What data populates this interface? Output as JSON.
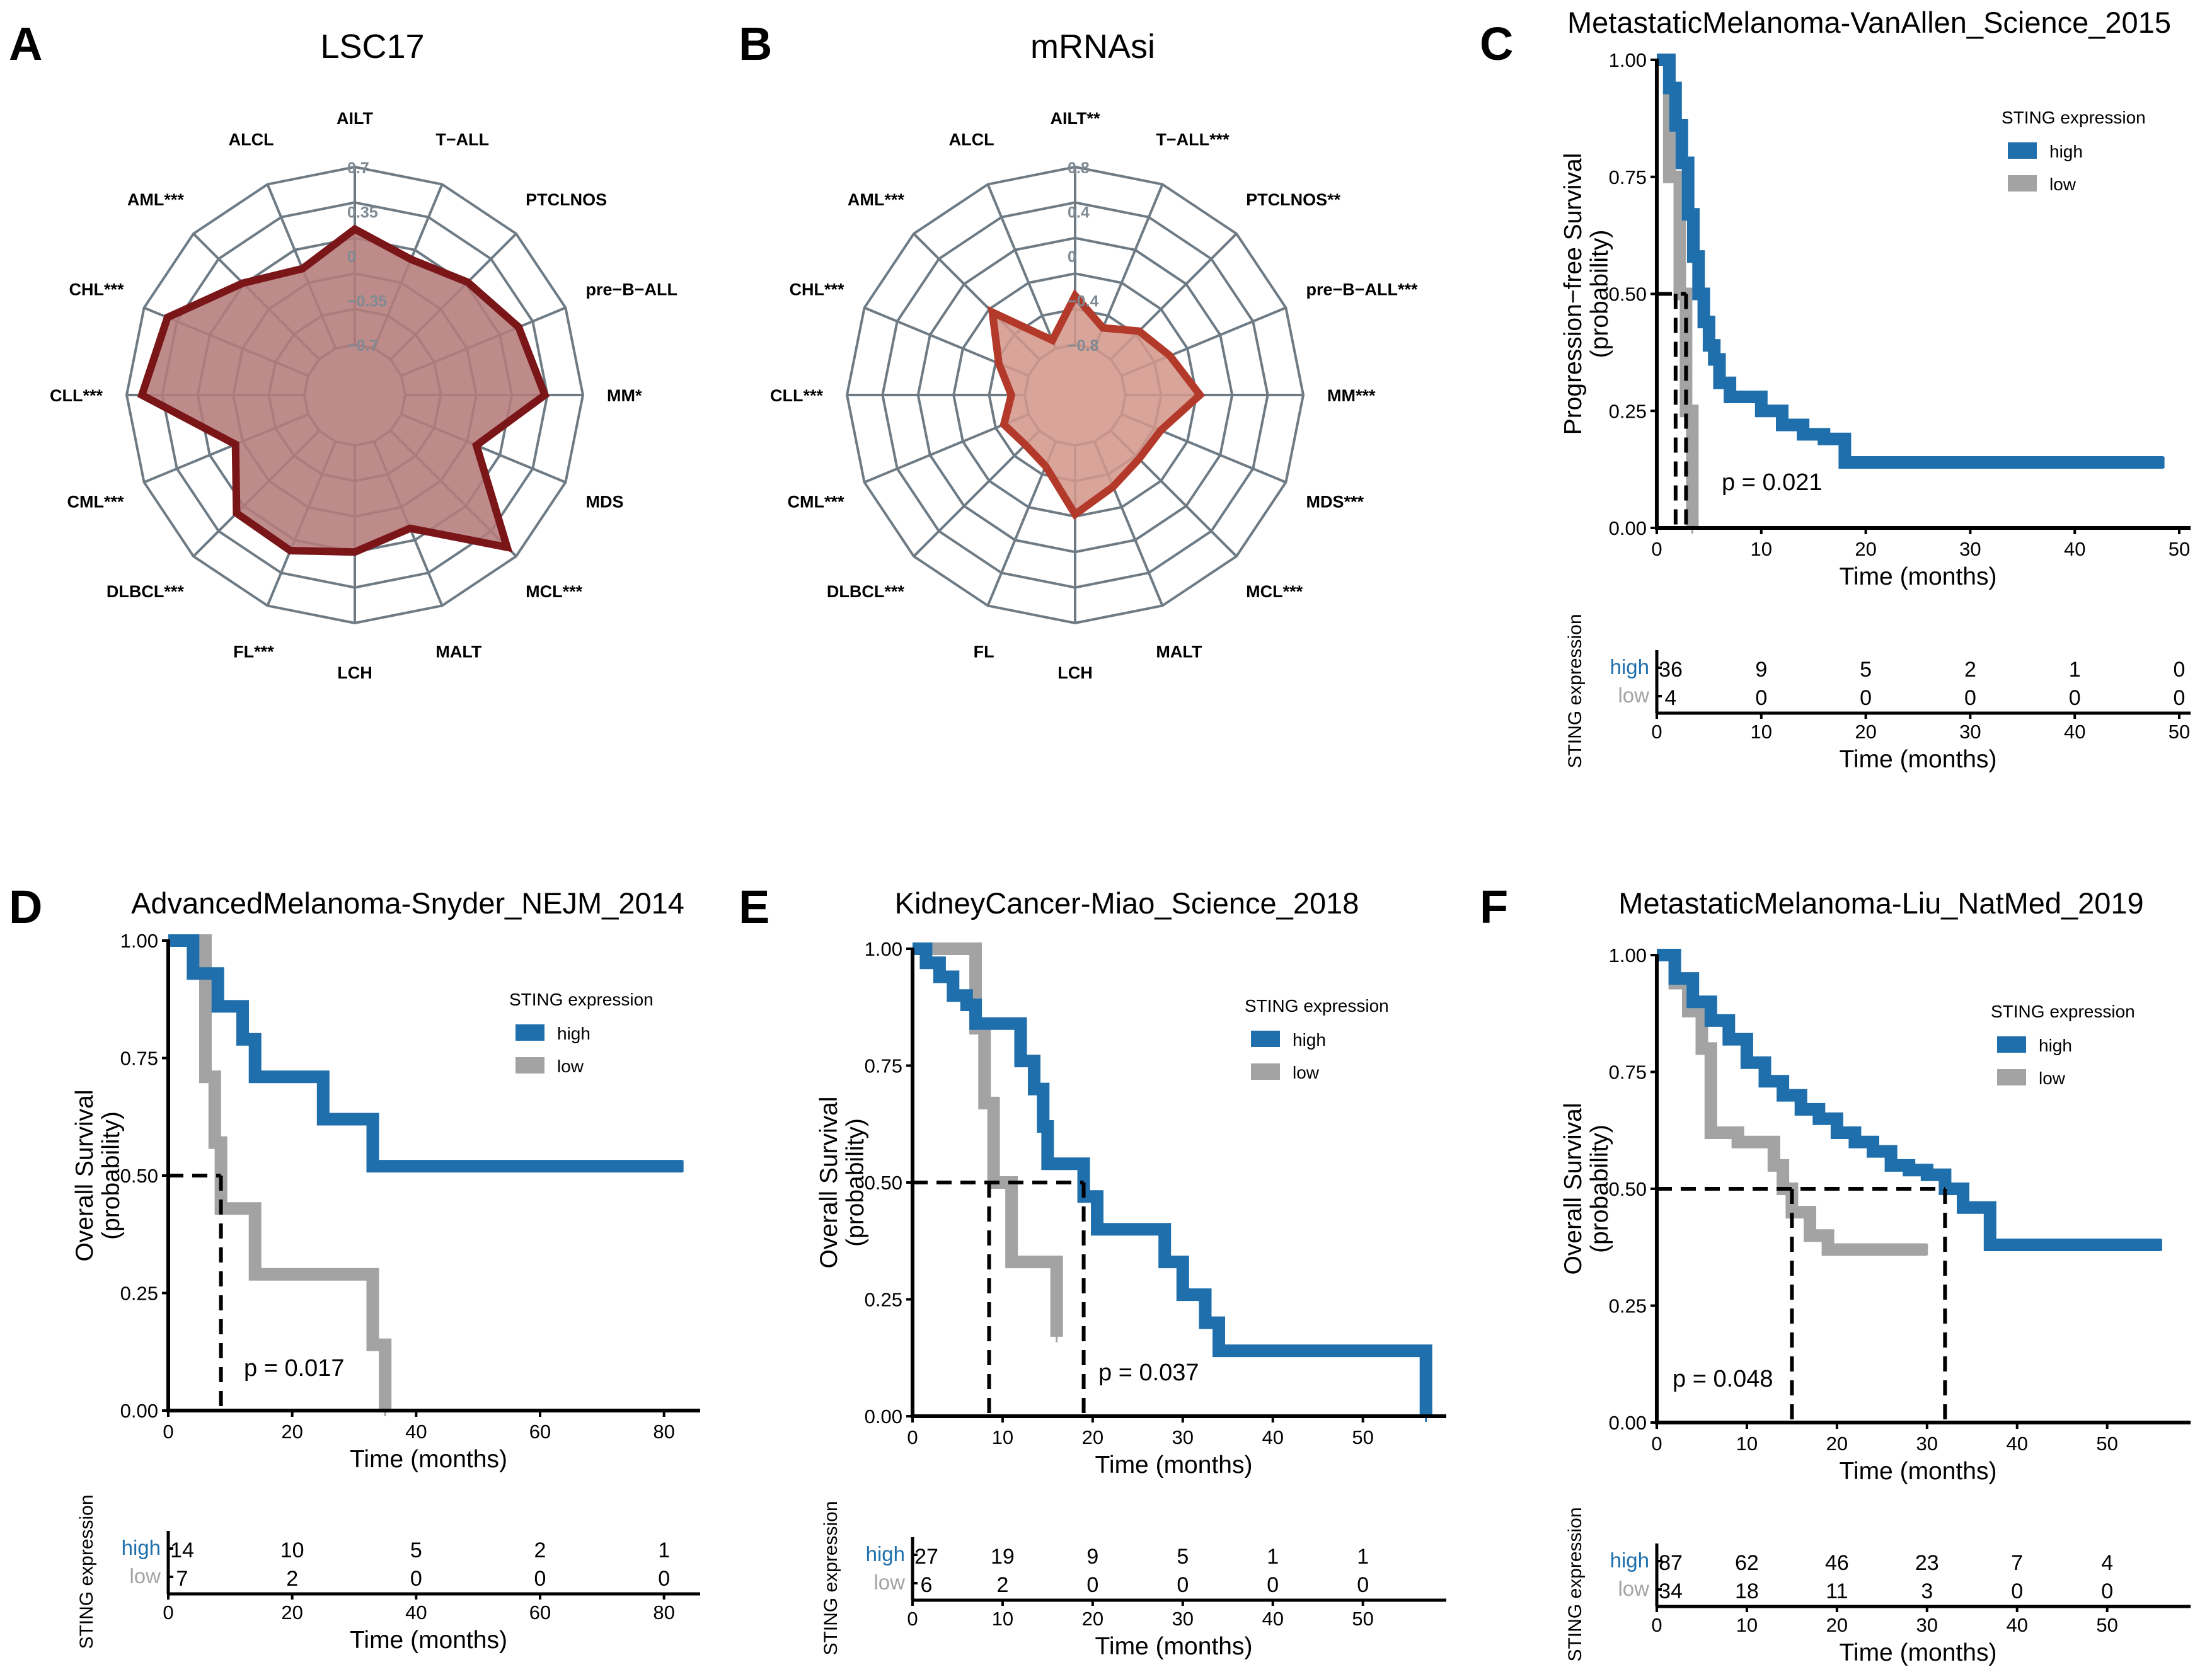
{
  "colors": {
    "high": "#1f6fac",
    "low": "#a3a3a3",
    "radar_grid": "#6e7b85",
    "lsc17_stroke": "#7a1518",
    "lsc17_fill": "#b57b7b",
    "mrnasi_stroke": "#b33a2a",
    "mrnasi_fill": "#d4978c",
    "axis": "#000000"
  },
  "chart_data": [
    {
      "panel": "A",
      "type": "radar",
      "title": "LSC17",
      "axes": [
        "AILT",
        "T−ALL",
        "PTCLNOS",
        "pre−B−ALL",
        "MM*",
        "MDS",
        "MCL***",
        "MALT",
        "LCH",
        "FL***",
        "DLBCL***",
        "CML***",
        "CLL***",
        "CHL***",
        "AML***",
        "ALCL"
      ],
      "tick_labels": [
        "0.7",
        "0.35",
        "0",
        "−0.35",
        "−0.7"
      ],
      "scale": [
        -0.7,
        0.7
      ],
      "values": [
        0.21,
        0.06,
        0.16,
        0.3,
        0.4,
        -0.06,
        0.6,
        0.04,
        0.14,
        0.23,
        0.22,
        -0.08,
        0.58,
        0.5,
        0.15,
        -0.02
      ]
    },
    {
      "panel": "B",
      "type": "radar",
      "title": "mRNAsi",
      "axes": [
        "AILT**",
        "T−ALL***",
        "PTCLNOS**",
        "pre−B−ALL***",
        "MM***",
        "MDS***",
        "MCL***",
        "MALT",
        "LCH",
        "FL",
        "DLBCL***",
        "CML***",
        "CLL***",
        "CHL***",
        "AML***",
        "ALCL"
      ],
      "tick_labels": [
        "0.8",
        "0.4",
        "0",
        "−0.4",
        "−0.8"
      ],
      "scale": [
        -0.8,
        0.8
      ],
      "values": [
        -0.36,
        -0.6,
        -0.44,
        -0.33,
        -0.13,
        -0.42,
        -0.44,
        -0.36,
        -0.18,
        -0.56,
        -0.62,
        -0.56,
        -0.68,
        -0.51,
        -0.2,
        -0.72
      ]
    },
    {
      "panel": "C",
      "type": "line",
      "title": "MetastaticMelanoma-VanAllen_Science_2015",
      "ylabel_line1": "Progression−free Survival",
      "ylabel_line2": "(probability)",
      "xlabel": "Time (months)",
      "xlim": [
        0,
        50
      ],
      "ylim": [
        0,
        1
      ],
      "xticks": [
        "0",
        "10",
        "20",
        "30",
        "40",
        "50"
      ],
      "yticks": [
        "0.00",
        "0.25",
        "0.50",
        "0.75",
        "1.00"
      ],
      "legend_title": "STING  expression",
      "legend_items": [
        "high",
        "low"
      ],
      "pvalue": "p = 0.021",
      "series": [
        {
          "name": "high",
          "x": [
            0,
            1.2,
            1.8,
            2.4,
            3,
            3.5,
            4,
            4.5,
            5,
            5.5,
            6,
            7,
            10,
            12,
            14,
            16,
            18,
            48.5
          ],
          "y": [
            1,
            0.94,
            0.86,
            0.78,
            0.67,
            0.58,
            0.5,
            0.44,
            0.39,
            0.36,
            0.31,
            0.28,
            0.25,
            0.22,
            0.2,
            0.19,
            0.14,
            0.14
          ]
        },
        {
          "name": "low",
          "x": [
            0,
            1.2,
            2.2,
            2.8,
            3.4
          ],
          "y": [
            1,
            0.75,
            0.5,
            0.25,
            0
          ]
        }
      ],
      "median_lines": [
        [
          1.8,
          0.5
        ],
        [
          2.8,
          0.5
        ]
      ],
      "risk_table": {
        "title": "STING  expression",
        "xlabel": "Time (months)",
        "ticks": [
          "0",
          "10",
          "20",
          "30",
          "40",
          "50"
        ],
        "rows": [
          {
            "label": "high",
            "counts": [
              "36",
              "9",
              "5",
              "2",
              "1",
              "0"
            ]
          },
          {
            "label": "low",
            "counts": [
              "4",
              "0",
              "0",
              "0",
              "0",
              "0"
            ]
          }
        ]
      }
    },
    {
      "panel": "D",
      "type": "line",
      "title": "AdvancedMelanoma-Snyder_NEJM_2014",
      "ylabel_line1": "Overall Survival",
      "ylabel_line2": "(probability)",
      "xlabel": "Time (months)",
      "xlim": [
        0,
        84
      ],
      "ylim": [
        0,
        1
      ],
      "xticks": [
        "0",
        "20",
        "40",
        "60",
        "80"
      ],
      "yticks": [
        "0.00",
        "0.25",
        "0.50",
        "0.75",
        "1.00"
      ],
      "legend_title": "STING  expression",
      "legend_items": [
        "high",
        "low"
      ],
      "pvalue": "p = 0.017",
      "series": [
        {
          "name": "high",
          "x": [
            0,
            4,
            8,
            12,
            14,
            25,
            33,
            83
          ],
          "y": [
            1,
            0.93,
            0.86,
            0.79,
            0.71,
            0.62,
            0.52,
            0.52
          ]
        },
        {
          "name": "low",
          "x": [
            0,
            6,
            7.5,
            8.5,
            14,
            33,
            35
          ],
          "y": [
            1,
            0.71,
            0.57,
            0.43,
            0.29,
            0.14,
            0
          ]
        }
      ],
      "median_lines": [
        [
          8.5,
          0.5
        ]
      ],
      "risk_table": {
        "title": "STING  expression",
        "xlabel": "Time (months)",
        "ticks": [
          "0",
          "20",
          "40",
          "60",
          "80"
        ],
        "rows": [
          {
            "label": "high",
            "counts": [
              "14",
              "10",
              "5",
              "2",
              "1"
            ]
          },
          {
            "label": "low",
            "counts": [
              "7",
              "2",
              "0",
              "0",
              "0"
            ]
          }
        ]
      }
    },
    {
      "panel": "E",
      "type": "line",
      "title": "KidneyCancer-Miao_Science_2018",
      "ylabel_line1": "Overall Survival",
      "ylabel_line2": "(probability)",
      "xlabel": "Time (months)",
      "xlim": [
        0,
        58
      ],
      "ylim": [
        0,
        1
      ],
      "xticks": [
        "0",
        "10",
        "20",
        "30",
        "40",
        "50"
      ],
      "yticks": [
        "0.00",
        "0.25",
        "0.50",
        "0.75",
        "1.00"
      ],
      "legend_title": "STING  expression",
      "legend_items": [
        "high",
        "low"
      ],
      "pvalue": "p = 0.037",
      "series": [
        {
          "name": "high",
          "x": [
            0,
            1.5,
            3,
            4.5,
            6,
            7,
            8,
            12,
            13.5,
            14.5,
            15,
            19,
            20.5,
            28,
            30,
            32.5,
            34,
            57
          ],
          "y": [
            1,
            0.97,
            0.94,
            0.9,
            0.88,
            0.84,
            0.84,
            0.76,
            0.7,
            0.62,
            0.54,
            0.47,
            0.4,
            0.33,
            0.26,
            0.2,
            0.14,
            0
          ]
        },
        {
          "name": "low",
          "x": [
            0,
            7,
            8,
            9,
            11,
            16
          ],
          "y": [
            1,
            0.83,
            0.67,
            0.5,
            0.33,
            0.17
          ]
        }
      ],
      "median_lines": [
        [
          8.5,
          0.5
        ],
        [
          19,
          0.5
        ]
      ],
      "risk_table": {
        "title": "STING  expression",
        "xlabel": "Time (months)",
        "ticks": [
          "0",
          "10",
          "20",
          "30",
          "40",
          "50"
        ],
        "rows": [
          {
            "label": "high",
            "counts": [
              "27",
              "19",
              "9",
              "5",
              "1",
              "1"
            ]
          },
          {
            "label": "low",
            "counts": [
              "6",
              "2",
              "0",
              "0",
              "0",
              "0"
            ]
          }
        ]
      }
    },
    {
      "panel": "F",
      "type": "line",
      "title": "MetastaticMelanoma-Liu_NatMed_2019",
      "ylabel_line1": "Overall Survival",
      "ylabel_line2": "(probability)",
      "xlabel": "Time (months)",
      "xlim": [
        0,
        58
      ],
      "ylim": [
        0,
        1
      ],
      "xticks": [
        "0",
        "10",
        "20",
        "30",
        "40",
        "50"
      ],
      "yticks": [
        "0.00",
        "0.25",
        "0.50",
        "0.75",
        "1.00"
      ],
      "legend_title": "STING  expression",
      "legend_items": [
        "high",
        "low"
      ],
      "pvalue": "p = 0.048",
      "series": [
        {
          "name": "high",
          "x": [
            0,
            2,
            4,
            6,
            8,
            10,
            12,
            14,
            16,
            18,
            20,
            22,
            24,
            26,
            28,
            30,
            32,
            34,
            37,
            56
          ],
          "y": [
            1,
            0.95,
            0.9,
            0.86,
            0.82,
            0.77,
            0.73,
            0.7,
            0.67,
            0.65,
            0.62,
            0.6,
            0.58,
            0.55,
            0.54,
            0.53,
            0.5,
            0.46,
            0.38,
            0.38
          ]
        },
        {
          "name": "low",
          "x": [
            0,
            2,
            3.5,
            5,
            6,
            9,
            13,
            14,
            15,
            17,
            19,
            30
          ],
          "y": [
            1,
            0.94,
            0.88,
            0.8,
            0.62,
            0.6,
            0.55,
            0.5,
            0.45,
            0.4,
            0.37,
            0.37
          ]
        }
      ],
      "median_lines": [
        [
          15,
          0.5
        ],
        [
          32,
          0.5
        ]
      ],
      "risk_table": {
        "title": "STING  expression",
        "xlabel": "Time (months)",
        "ticks": [
          "0",
          "10",
          "20",
          "30",
          "40",
          "50"
        ],
        "rows": [
          {
            "label": "high",
            "counts": [
              "87",
              "62",
              "46",
              "23",
              "7",
              "4"
            ]
          },
          {
            "label": "low",
            "counts": [
              "34",
              "18",
              "11",
              "3",
              "0",
              "0"
            ]
          }
        ]
      }
    }
  ]
}
